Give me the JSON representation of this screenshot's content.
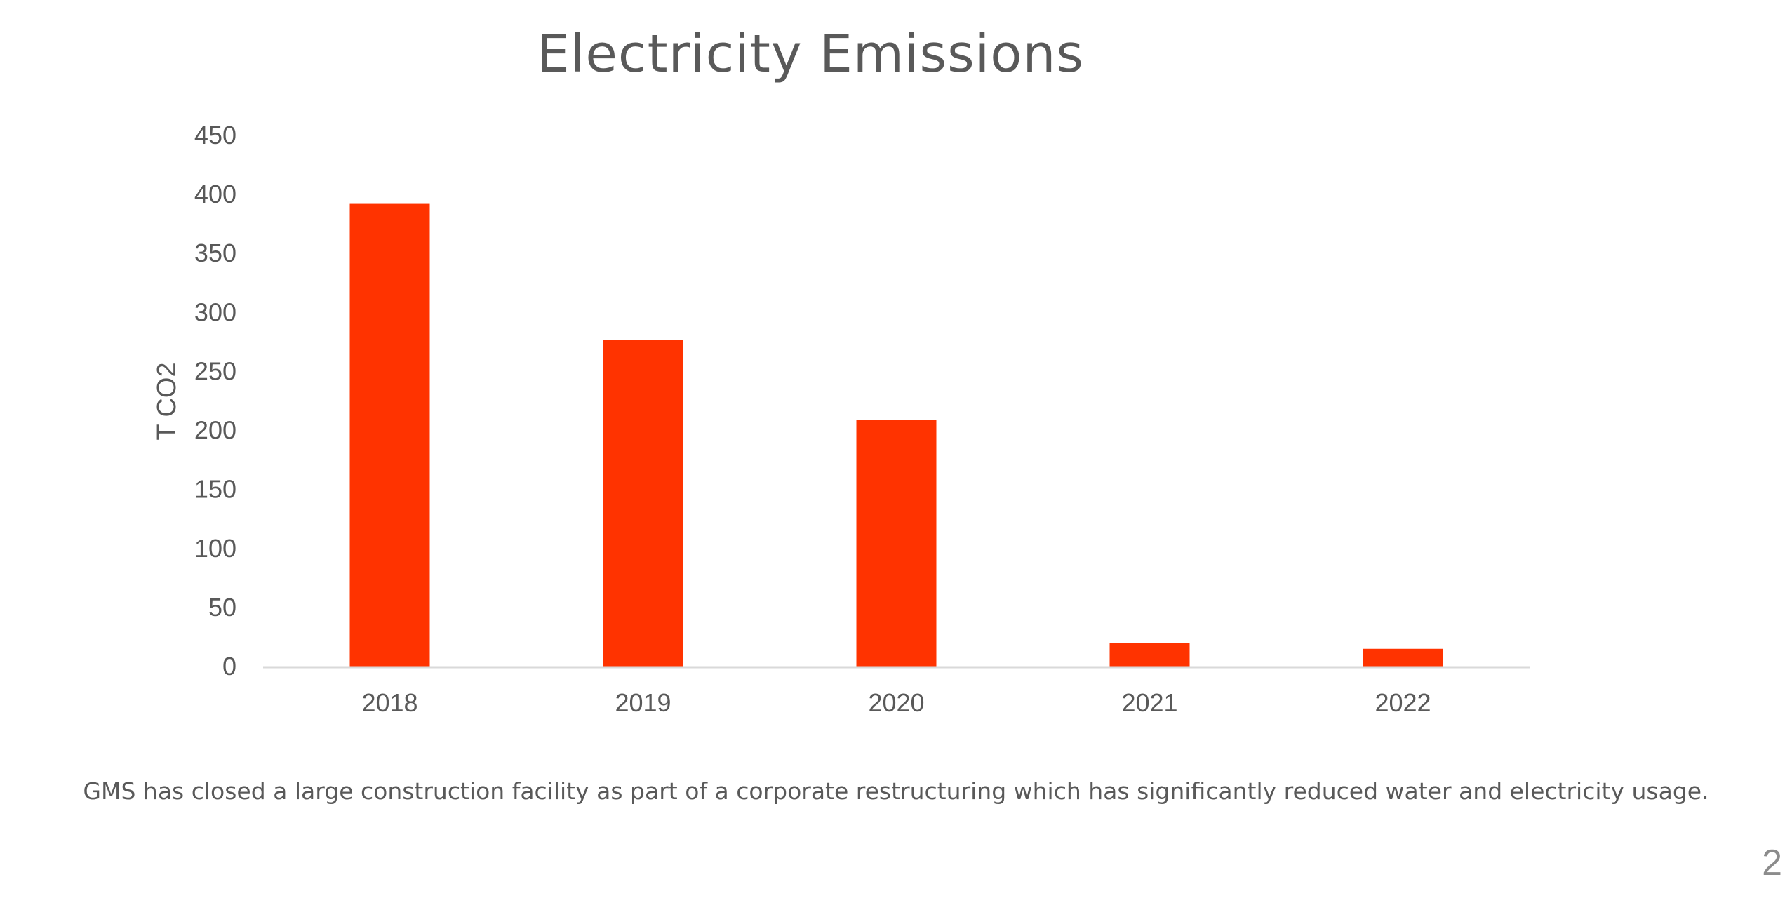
{
  "slide": {
    "title": "Electricity Emissions",
    "caption": "GMS has closed a large construction facility as part of a corporate restructuring which has significantly reduced water and electricity usage.",
    "page_number": "2"
  },
  "colors": {
    "bar": "#ff3300",
    "axis_line": "#d9d9d9",
    "text": "#595959"
  },
  "chart_data": {
    "type": "bar",
    "categories": [
      "2018",
      "2019",
      "2020",
      "2021",
      "2022"
    ],
    "values": [
      392,
      277,
      209,
      20,
      15
    ],
    "ylabel": "T CO2",
    "xlabel": "",
    "ylim": [
      0,
      450
    ],
    "yticks": [
      "0",
      "50",
      "100",
      "150",
      "200",
      "250",
      "300",
      "350",
      "400",
      "450"
    ],
    "grid": false,
    "legend": "none"
  }
}
